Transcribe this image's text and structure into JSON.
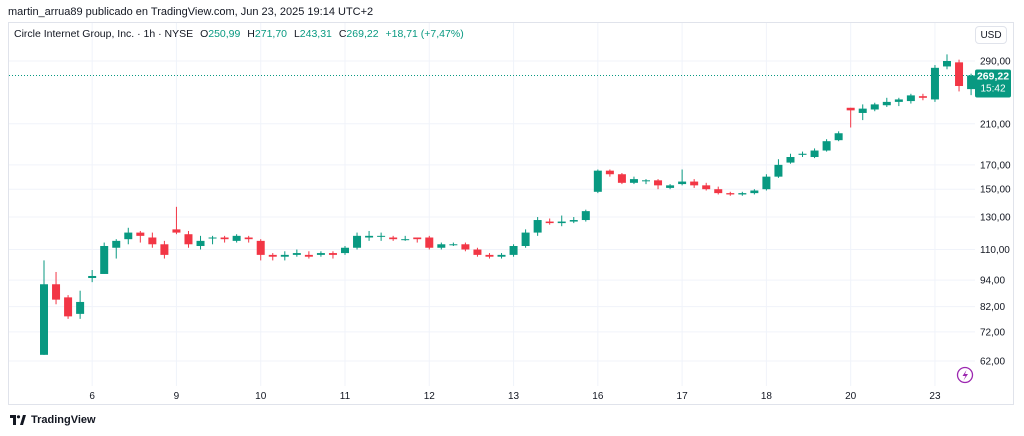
{
  "header": {
    "published_by": "martin_arrua89 publicado en TradingView.com, Jun 23, 2025 19:14 UTC+2"
  },
  "legend": {
    "symbol": "Circle Internet Group, Inc. · 1h · NYSE",
    "open_label": "O",
    "open": "250,99",
    "high_label": "H",
    "high": "271,70",
    "low_label": "L",
    "low": "243,31",
    "close_label": "C",
    "close": "269,22",
    "change": "+18,71 (+7,47%)"
  },
  "currency_button": "USD",
  "price_tag": {
    "price": "269,22",
    "countdown": "15:42"
  },
  "footer": {
    "brand": "TradingView"
  },
  "colors": {
    "up": "#089981",
    "down": "#f23645",
    "grid": "#f0f3fa"
  },
  "chart_data": {
    "type": "candlestick",
    "y_scale": "log",
    "y_ticks": [
      {
        "value": 62,
        "label": "62,00"
      },
      {
        "value": 72,
        "label": "72,00"
      },
      {
        "value": 82,
        "label": "82,00"
      },
      {
        "value": 94,
        "label": "94,00"
      },
      {
        "value": 110,
        "label": "110,00"
      },
      {
        "value": 130,
        "label": "130,00"
      },
      {
        "value": 150,
        "label": "150,00"
      },
      {
        "value": 170,
        "label": "170,00"
      },
      {
        "value": 210,
        "label": "210,00"
      },
      {
        "value": 290,
        "label": "290,00"
      }
    ],
    "x_ticks": [
      {
        "index": 4,
        "label": "6"
      },
      {
        "index": 11,
        "label": "9"
      },
      {
        "index": 18,
        "label": "10"
      },
      {
        "index": 25,
        "label": "11"
      },
      {
        "index": 32,
        "label": "12"
      },
      {
        "index": 39,
        "label": "13"
      },
      {
        "index": 46,
        "label": "16"
      },
      {
        "index": 53,
        "label": "17"
      },
      {
        "index": 60,
        "label": "18"
      },
      {
        "index": 67,
        "label": "20"
      },
      {
        "index": 74,
        "label": "23"
      }
    ],
    "last_price": 269.22,
    "candles": [
      [
        64,
        92,
        104,
        64
      ],
      [
        92,
        85,
        98,
        83
      ],
      [
        86,
        78,
        87,
        77
      ],
      [
        79,
        84,
        89,
        77
      ],
      [
        95,
        96,
        99,
        93
      ],
      [
        97,
        112,
        114,
        97
      ],
      [
        111,
        115,
        116,
        105
      ],
      [
        116,
        120,
        123,
        113
      ],
      [
        120,
        118,
        121,
        114
      ],
      [
        117,
        113,
        120,
        111
      ],
      [
        113,
        107,
        115,
        105
      ],
      [
        122,
        120,
        137,
        119
      ],
      [
        119,
        113,
        121,
        111
      ],
      [
        112,
        115,
        118,
        110
      ],
      [
        117,
        117,
        118,
        113
      ],
      [
        117,
        116,
        118,
        114
      ],
      [
        115,
        118,
        119,
        114
      ],
      [
        117,
        116,
        118,
        114
      ],
      [
        115,
        107,
        116,
        104
      ],
      [
        107,
        106,
        108,
        104
      ],
      [
        106,
        107,
        109,
        104
      ],
      [
        107,
        108,
        110,
        106
      ],
      [
        107,
        106,
        109,
        105
      ],
      [
        107,
        108,
        109,
        106
      ],
      [
        108,
        107,
        109,
        105
      ],
      [
        108,
        111,
        112,
        107
      ],
      [
        111,
        118,
        120,
        110
      ],
      [
        117,
        118,
        121,
        115
      ],
      [
        118,
        118,
        120,
        115
      ],
      [
        117,
        116,
        118,
        115
      ],
      [
        116,
        116,
        118,
        115
      ],
      [
        117,
        116,
        117,
        114
      ],
      [
        117,
        111,
        118,
        110
      ],
      [
        111,
        113,
        114,
        110
      ],
      [
        113,
        113,
        114,
        112
      ],
      [
        113,
        110,
        114,
        109
      ],
      [
        110,
        107,
        111,
        106
      ],
      [
        107,
        106,
        108,
        105
      ],
      [
        106,
        107,
        108,
        105
      ],
      [
        107,
        112,
        113,
        106
      ],
      [
        112,
        120,
        122,
        111
      ],
      [
        120,
        128,
        130,
        118
      ],
      [
        127,
        126,
        129,
        125
      ],
      [
        126,
        127,
        131,
        124
      ],
      [
        127,
        128,
        130,
        126
      ],
      [
        128,
        134,
        135,
        127
      ],
      [
        148,
        165,
        166,
        147
      ],
      [
        165,
        162,
        166,
        160
      ],
      [
        162,
        155,
        163,
        154
      ],
      [
        155,
        158,
        160,
        154
      ],
      [
        157,
        157,
        158,
        154
      ],
      [
        157,
        153,
        158,
        150
      ],
      [
        151,
        153,
        154,
        150
      ],
      [
        154,
        156,
        166,
        153
      ],
      [
        156,
        153,
        158,
        151
      ],
      [
        153,
        150,
        155,
        149
      ],
      [
        150,
        147,
        152,
        146
      ],
      [
        147,
        146,
        148,
        145
      ],
      [
        146,
        147,
        148,
        145
      ],
      [
        147,
        149,
        150,
        146
      ],
      [
        150,
        160,
        162,
        149
      ],
      [
        160,
        170,
        175,
        159
      ],
      [
        172,
        177,
        180,
        171
      ],
      [
        179,
        180,
        182,
        177
      ],
      [
        177,
        183,
        185,
        176
      ],
      [
        183,
        192,
        194,
        182
      ],
      [
        193,
        200,
        202,
        192
      ],
      [
        228,
        225,
        228,
        206
      ],
      [
        222,
        227,
        232,
        214
      ],
      [
        226,
        232,
        234,
        224
      ],
      [
        231,
        235,
        240,
        229
      ],
      [
        235,
        238,
        240,
        230
      ],
      [
        236,
        243,
        245,
        233
      ],
      [
        242,
        240,
        245,
        237
      ],
      [
        238,
        280,
        284,
        235
      ],
      [
        282,
        290,
        300,
        278
      ],
      [
        288,
        255,
        292,
        248
      ],
      [
        250.99,
        269.22,
        271.7,
        243.31
      ]
    ]
  }
}
